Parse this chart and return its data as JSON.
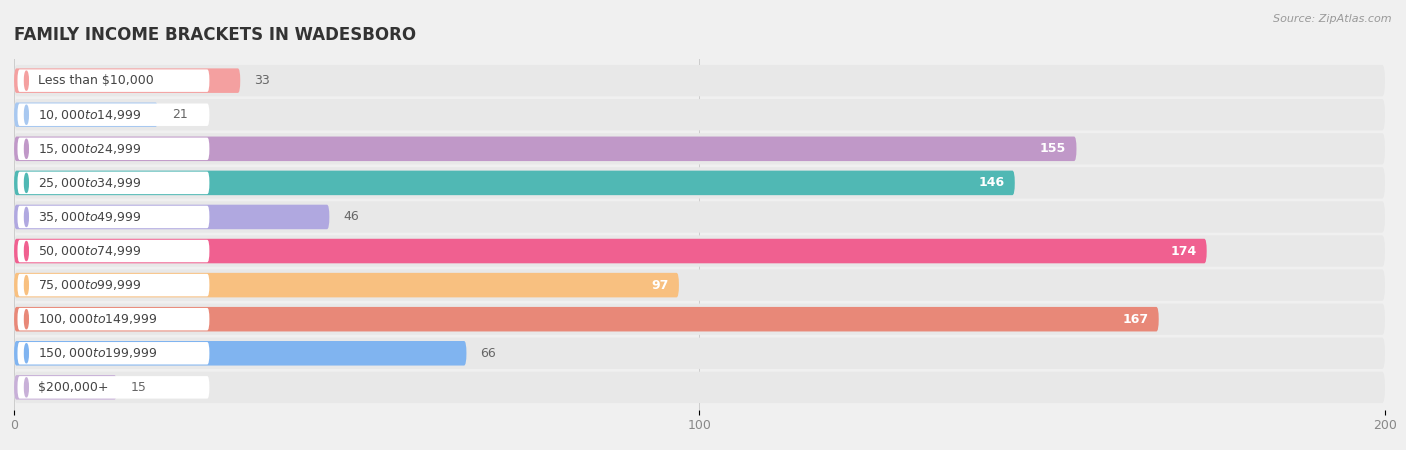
{
  "title": "FAMILY INCOME BRACKETS IN WADESBORO",
  "source": "Source: ZipAtlas.com",
  "categories": [
    "Less than $10,000",
    "$10,000 to $14,999",
    "$15,000 to $24,999",
    "$25,000 to $34,999",
    "$35,000 to $49,999",
    "$50,000 to $74,999",
    "$75,000 to $99,999",
    "$100,000 to $149,999",
    "$150,000 to $199,999",
    "$200,000+"
  ],
  "values": [
    33,
    21,
    155,
    146,
    46,
    174,
    97,
    167,
    66,
    15
  ],
  "colors": [
    "#F4A0A0",
    "#A8C8F0",
    "#C098C8",
    "#50B8B4",
    "#B0A8E0",
    "#F06090",
    "#F8C080",
    "#E88878",
    "#80B4F0",
    "#C8B0D8"
  ],
  "xlim_data": [
    0,
    200
  ],
  "xticks": [
    0,
    100,
    200
  ],
  "background_color": "#f0f0f0",
  "title_fontsize": 12,
  "label_fontsize": 9,
  "value_fontsize": 9
}
